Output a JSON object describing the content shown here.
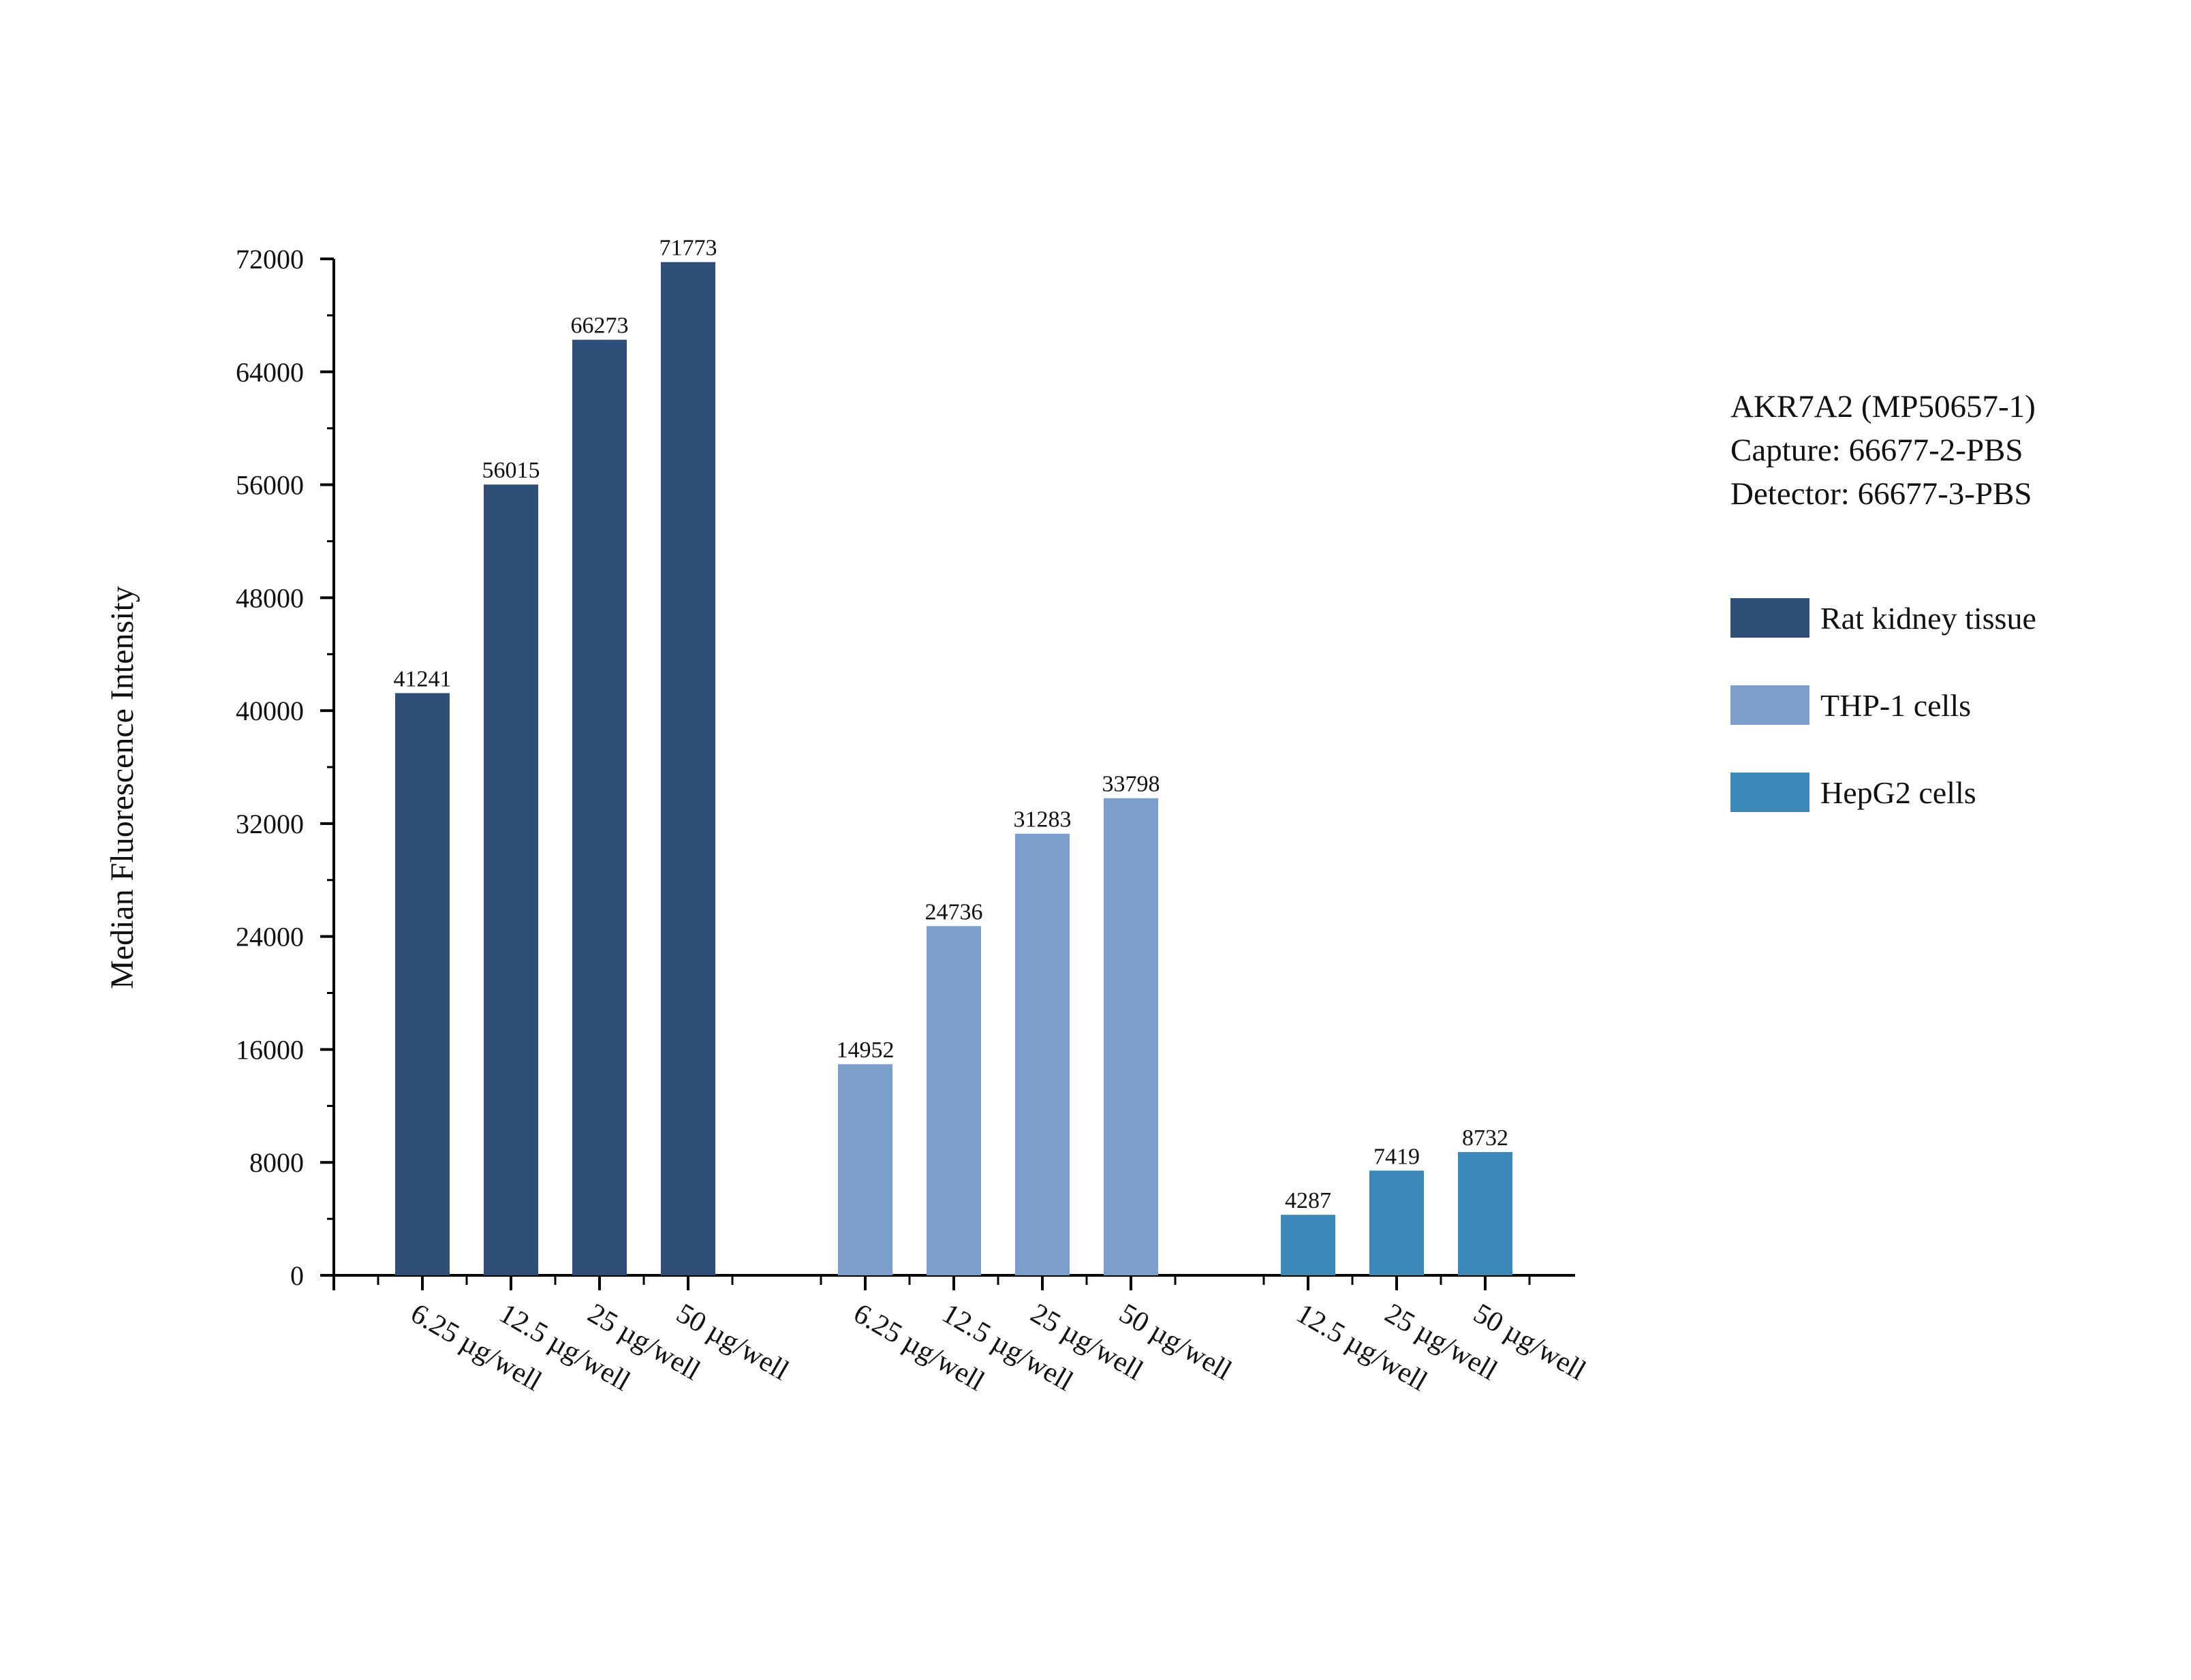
{
  "chart_data": {
    "type": "bar",
    "title": "",
    "xlabel": "",
    "ylabel": "Median Fluorescence Intensity",
    "ylim": [
      0,
      72000
    ],
    "yticks": [
      0,
      8000,
      16000,
      24000,
      32000,
      40000,
      48000,
      56000,
      64000,
      72000
    ],
    "grid": false,
    "legend_position": "right",
    "info_lines": [
      "AKR7A2 (MP50657-1)",
      "Capture: 66677-2-PBS",
      "Detector: 66677-3-PBS"
    ],
    "groups": [
      {
        "name": "Rat kidney tissue",
        "color": "#2f4f78",
        "categories": [
          "6.25 µg/well",
          "12.5 µg/well",
          "25 µg/well",
          "50 µg/well"
        ],
        "values": [
          41241,
          56015,
          66273,
          71773
        ]
      },
      {
        "name": "THP-1 cells",
        "color": "#7b9ecb",
        "categories": [
          "6.25 µg/well",
          "12.5 µg/well",
          "25 µg/well",
          "50 µg/well"
        ],
        "values": [
          14952,
          24736,
          31283,
          33798
        ]
      },
      {
        "name": "HepG2 cells",
        "color": "#3c89b9",
        "categories": [
          "12.5 µg/well",
          "25 µg/well",
          "50 µg/well"
        ],
        "values": [
          4287,
          7419,
          8732
        ]
      }
    ]
  }
}
